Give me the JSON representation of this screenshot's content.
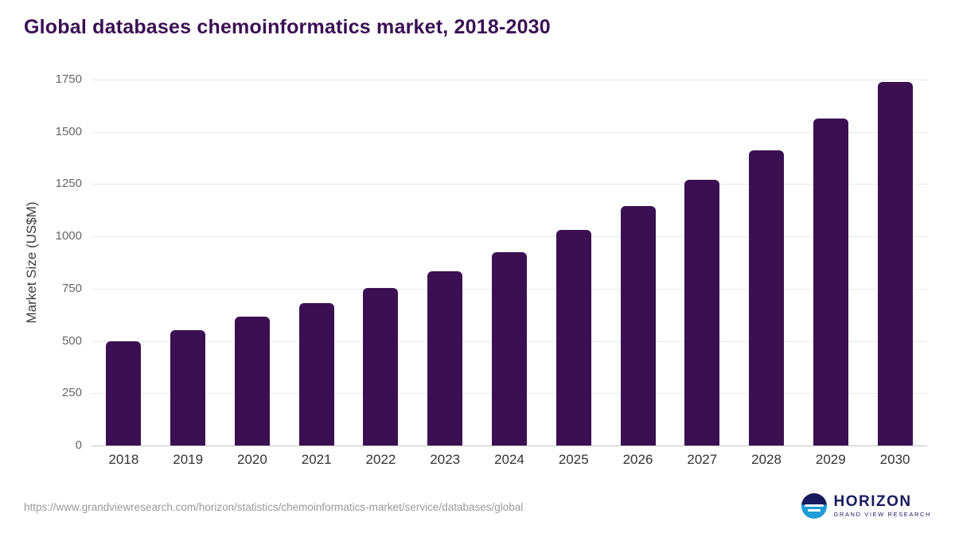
{
  "header": {
    "title": "Global databases chemoinformatics market, 2018-2030"
  },
  "footer": {
    "source_url": "https://www.grandviewresearch.com/horizon/statistics/chemoinformatics-market/service/databases/global",
    "logo_name": "HORIZON",
    "logo_subtitle": "GRAND VIEW RESEARCH"
  },
  "colors": {
    "bar": "#3b1053",
    "title": "#3a1053",
    "gridline": "#e8e8e8",
    "axis_line": "#c4c4c4",
    "logo_navy": "#181a5e",
    "logo_blue": "#1e9cd6"
  },
  "chart_data": {
    "type": "bar",
    "title": "Global databases chemoinformatics market, 2018-2030",
    "categories": [
      "2018",
      "2019",
      "2020",
      "2021",
      "2022",
      "2023",
      "2024",
      "2025",
      "2026",
      "2027",
      "2028",
      "2029",
      "2030"
    ],
    "values": [
      500,
      550,
      615,
      680,
      755,
      835,
      925,
      1030,
      1145,
      1270,
      1410,
      1565,
      1740
    ],
    "xlabel": "",
    "ylabel": "Market Size (US$M)",
    "ylim": [
      0,
      1750
    ],
    "yticks": [
      0,
      250,
      500,
      750,
      1000,
      1250,
      1500,
      1750
    ],
    "grid": true,
    "legend": "none",
    "bar_color": "#3b1053"
  }
}
